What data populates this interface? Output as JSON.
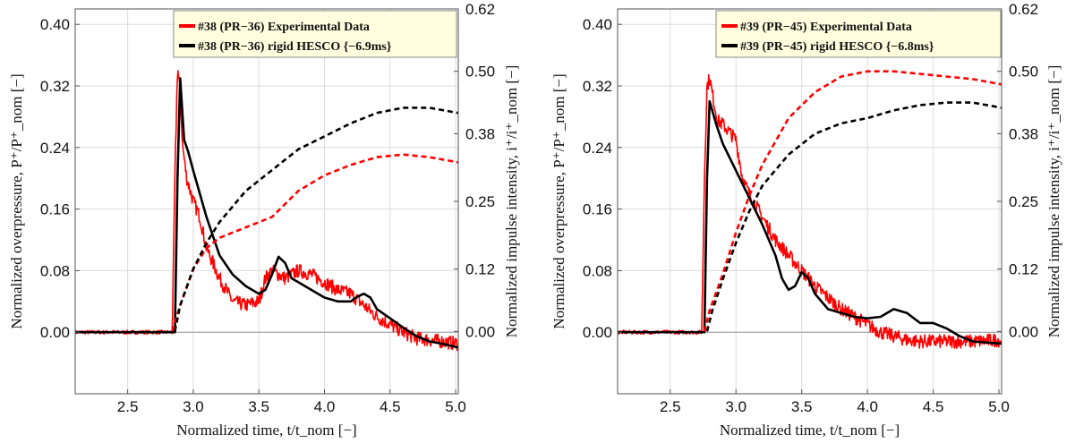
{
  "colors": {
    "experimental": "#ff0000",
    "simulation": "#000000",
    "legend_bg": "#ffffe0",
    "grid": "#dcdcdc"
  },
  "chart_data": [
    {
      "type": "line",
      "xlabel": "Normalized time, t/t_nom [−]",
      "ylabel_left": "Normalized overpressure, P⁺/P⁺_nom [−]",
      "ylabel_right": "Normalized impulse intensity, i⁺/i⁺_nom [−]",
      "xlim": [
        2.1,
        5.02
      ],
      "ylim_left": [
        -0.08,
        0.42
      ],
      "ylim_right": [
        -0.12,
        0.62
      ],
      "xticks": [
        "2.5",
        "3.0",
        "3.5",
        "4.0",
        "4.5",
        "5.0"
      ],
      "yticks_left": [
        "0.00",
        "0.08",
        "0.16",
        "0.24",
        "0.32",
        "0.40"
      ],
      "yticks_right": [
        "0.00",
        "0.12",
        "0.25",
        "0.38",
        "0.50",
        "0.62"
      ],
      "grid": true,
      "legend_placement": "top-right",
      "series": [
        {
          "name": "#38 (PR−36) Experimental Data",
          "axis": "left",
          "style": "solid",
          "color": "#ff0000",
          "noisy": true,
          "x": [
            2.1,
            2.84,
            2.86,
            2.88,
            2.9,
            2.92,
            2.95,
            3.0,
            3.05,
            3.1,
            3.2,
            3.3,
            3.4,
            3.5,
            3.55,
            3.6,
            3.65,
            3.7,
            3.8,
            3.9,
            4.0,
            4.1,
            4.2,
            4.3,
            4.4,
            4.5,
            4.6,
            4.7,
            4.8,
            4.9,
            5.02
          ],
          "y": [
            0.0,
            0.0,
            0.2,
            0.345,
            0.31,
            0.24,
            0.2,
            0.17,
            0.15,
            0.11,
            0.07,
            0.04,
            0.035,
            0.04,
            0.07,
            0.08,
            0.075,
            0.07,
            0.08,
            0.075,
            0.065,
            0.055,
            0.05,
            0.035,
            0.02,
            0.01,
            0.0,
            -0.008,
            -0.01,
            -0.012,
            -0.015
          ]
        },
        {
          "name": "#38 (PR−36) rigid HESCO {−6.9ms}",
          "axis": "left",
          "style": "solid",
          "color": "#000000",
          "x": [
            2.1,
            2.86,
            2.88,
            2.9,
            2.93,
            2.96,
            3.0,
            3.1,
            3.2,
            3.3,
            3.4,
            3.5,
            3.55,
            3.6,
            3.65,
            3.7,
            3.75,
            3.8,
            3.9,
            4.0,
            4.1,
            4.2,
            4.25,
            4.3,
            4.35,
            4.4,
            4.5,
            4.6,
            4.7,
            4.8,
            4.9,
            5.02
          ],
          "y": [
            0.0,
            0.0,
            0.2,
            0.33,
            0.25,
            0.235,
            0.21,
            0.15,
            0.1,
            0.075,
            0.06,
            0.05,
            0.055,
            0.075,
            0.098,
            0.09,
            0.07,
            0.065,
            0.055,
            0.045,
            0.04,
            0.04,
            0.046,
            0.05,
            0.045,
            0.03,
            0.018,
            0.006,
            -0.005,
            -0.012,
            -0.015,
            -0.02
          ]
        },
        {
          "name": "",
          "axis": "right",
          "style": "dashed",
          "color": "#ff0000",
          "x": [
            2.84,
            2.9,
            3.0,
            3.1,
            3.2,
            3.4,
            3.6,
            3.8,
            4.0,
            4.2,
            4.4,
            4.6,
            4.8,
            5.02
          ],
          "y": [
            0.0,
            0.05,
            0.12,
            0.16,
            0.18,
            0.2,
            0.22,
            0.27,
            0.3,
            0.32,
            0.335,
            0.34,
            0.335,
            0.325
          ]
        },
        {
          "name": "",
          "axis": "right",
          "style": "dashed",
          "color": "#000000",
          "x": [
            2.86,
            2.9,
            3.0,
            3.1,
            3.2,
            3.4,
            3.6,
            3.8,
            4.0,
            4.2,
            4.4,
            4.6,
            4.8,
            5.02
          ],
          "y": [
            0.0,
            0.05,
            0.12,
            0.17,
            0.21,
            0.27,
            0.31,
            0.35,
            0.375,
            0.4,
            0.42,
            0.43,
            0.43,
            0.42
          ]
        }
      ],
      "legend": [
        {
          "label": "#38 (PR−36) Experimental Data",
          "color": "#ff0000"
        },
        {
          "label": "#38 (PR−36) rigid HESCO {−6.9ms}",
          "color": "#000000"
        }
      ]
    },
    {
      "type": "line",
      "xlabel": "Normalized time, t/t_nom [−]",
      "ylabel_left": "Normalized overpressure, P⁺/P⁺_nom [−]",
      "ylabel_right": "Normalized impulse intensity, i⁺/i⁺_nom [−]",
      "xlim": [
        2.1,
        5.02
      ],
      "ylim_left": [
        -0.08,
        0.42
      ],
      "ylim_right": [
        -0.12,
        0.62
      ],
      "xticks": [
        "2.5",
        "3.0",
        "3.5",
        "4.0",
        "4.5",
        "5.0"
      ],
      "yticks_left": [
        "0.00",
        "0.08",
        "0.16",
        "0.24",
        "0.32",
        "0.40"
      ],
      "yticks_right": [
        "0.00",
        "0.12",
        "0.25",
        "0.38",
        "0.50",
        "0.62"
      ],
      "grid": true,
      "legend_placement": "top-right",
      "series": [
        {
          "name": "#39 (PR−45) Experimental Data",
          "axis": "left",
          "style": "solid",
          "color": "#ff0000",
          "noisy": true,
          "x": [
            2.1,
            2.74,
            2.76,
            2.78,
            2.8,
            2.82,
            2.86,
            2.9,
            3.0,
            3.05,
            3.1,
            3.2,
            3.3,
            3.4,
            3.5,
            3.6,
            3.7,
            3.8,
            3.9,
            4.0,
            4.1,
            4.2,
            4.3,
            4.4,
            4.5,
            4.6,
            4.8,
            5.02
          ],
          "y": [
            0.0,
            0.0,
            0.2,
            0.32,
            0.33,
            0.31,
            0.275,
            0.27,
            0.25,
            0.2,
            0.18,
            0.15,
            0.12,
            0.1,
            0.08,
            0.06,
            0.045,
            0.03,
            0.02,
            0.01,
            0.0,
            -0.005,
            -0.01,
            -0.012,
            -0.012,
            -0.012,
            -0.012,
            -0.01
          ]
        },
        {
          "name": "#39 (PR−45) rigid HESCO {−6.8ms}",
          "axis": "left",
          "style": "solid",
          "color": "#000000",
          "x": [
            2.1,
            2.76,
            2.78,
            2.8,
            2.85,
            2.9,
            3.0,
            3.1,
            3.2,
            3.3,
            3.35,
            3.4,
            3.45,
            3.5,
            3.55,
            3.6,
            3.7,
            3.8,
            3.9,
            4.0,
            4.1,
            4.2,
            4.3,
            4.4,
            4.5,
            4.6,
            4.7,
            4.8,
            5.02
          ],
          "y": [
            0.0,
            0.0,
            0.2,
            0.3,
            0.27,
            0.245,
            0.21,
            0.175,
            0.14,
            0.1,
            0.07,
            0.055,
            0.06,
            0.078,
            0.07,
            0.05,
            0.03,
            0.025,
            0.02,
            0.018,
            0.02,
            0.03,
            0.025,
            0.012,
            0.012,
            0.005,
            -0.005,
            -0.012,
            -0.015
          ]
        },
        {
          "name": "",
          "axis": "right",
          "style": "dashed",
          "color": "#ff0000",
          "x": [
            2.76,
            2.8,
            2.9,
            3.0,
            3.1,
            3.2,
            3.4,
            3.6,
            3.8,
            4.0,
            4.2,
            4.4,
            4.6,
            4.8,
            5.02
          ],
          "y": [
            0.0,
            0.04,
            0.11,
            0.19,
            0.26,
            0.32,
            0.41,
            0.46,
            0.49,
            0.5,
            0.5,
            0.495,
            0.49,
            0.485,
            0.475
          ]
        },
        {
          "name": "",
          "axis": "right",
          "style": "dashed",
          "color": "#000000",
          "x": [
            2.78,
            2.82,
            2.9,
            3.0,
            3.1,
            3.2,
            3.4,
            3.6,
            3.8,
            4.0,
            4.2,
            4.4,
            4.6,
            4.8,
            5.02
          ],
          "y": [
            0.0,
            0.04,
            0.1,
            0.17,
            0.23,
            0.28,
            0.34,
            0.38,
            0.4,
            0.41,
            0.425,
            0.435,
            0.44,
            0.44,
            0.43
          ]
        }
      ],
      "legend": [
        {
          "label": "#39 (PR−45) Experimental Data",
          "color": "#ff0000"
        },
        {
          "label": "#39 (PR−45) rigid HESCO {−6.8ms}",
          "color": "#000000"
        }
      ]
    }
  ]
}
